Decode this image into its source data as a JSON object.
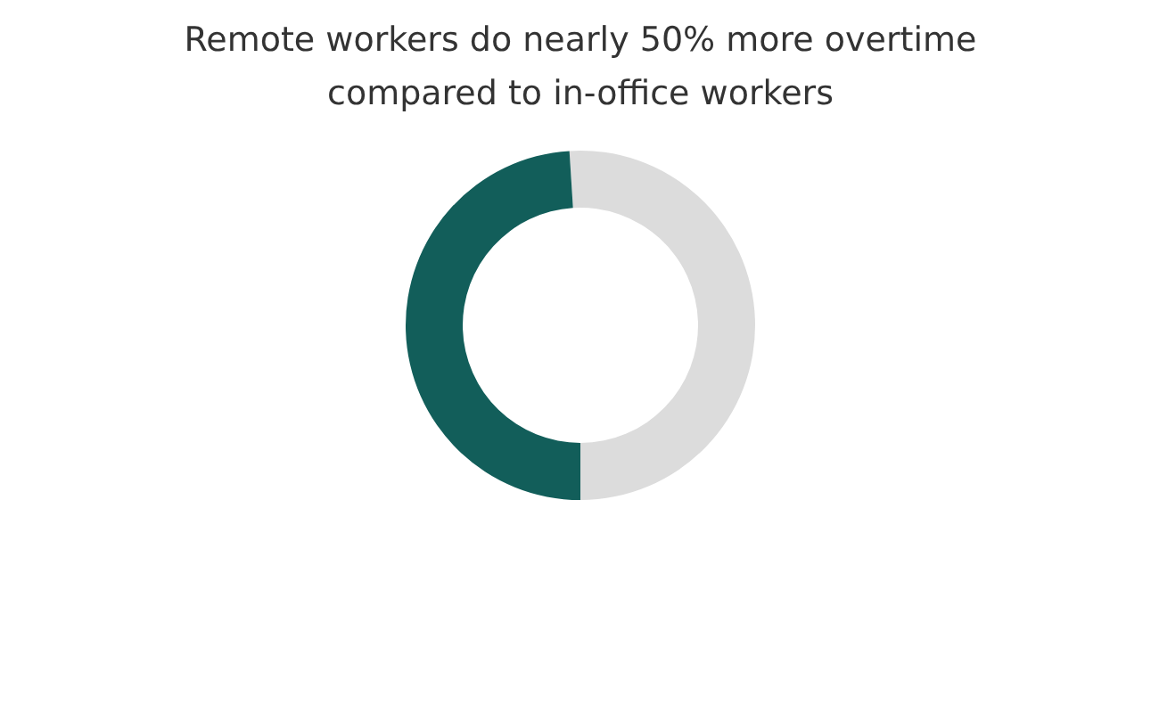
{
  "chart_data": {
    "type": "donut",
    "title": "Remote workers do nearly 50% more overtime\ncompared to in-office workers",
    "categories": [
      null,
      null
    ],
    "values": [
      51,
      49
    ],
    "colors": [
      "#dcdcdc",
      "#125e5a"
    ]
  }
}
